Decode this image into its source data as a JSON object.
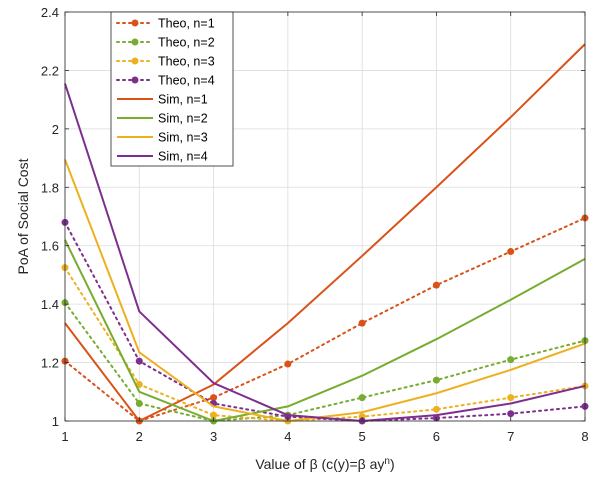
{
  "chart_data": {
    "type": "line",
    "xlabel": "Value of β (c(y)=β ay",
    "xlabel_sup": "n",
    "xlabel_end": ")",
    "ylabel": "PoA of Social Cost",
    "xlim": [
      1,
      8
    ],
    "ylim": [
      1,
      2.4
    ],
    "x_ticks": [
      "1",
      "2",
      "3",
      "4",
      "5",
      "6",
      "7",
      "8"
    ],
    "y_ticks": [
      "1",
      "1.2",
      "1.4",
      "1.6",
      "1.8",
      "2",
      "2.2",
      "2.4"
    ],
    "grid": true,
    "legend_position": "top-left",
    "x": [
      1,
      2,
      3,
      4,
      5,
      6,
      7,
      8
    ],
    "series": [
      {
        "name": "Theo, n=1",
        "style": "dotted-marker",
        "color": "#D95319",
        "values": [
          1.205,
          1.0,
          1.08,
          1.195,
          1.335,
          1.465,
          1.58,
          1.695
        ]
      },
      {
        "name": "Theo, n=2",
        "style": "dotted-marker",
        "color": "#77AC30",
        "values": [
          1.405,
          1.06,
          1.0,
          1.02,
          1.08,
          1.14,
          1.21,
          1.275
        ]
      },
      {
        "name": "Theo, n=3",
        "style": "dotted-marker",
        "color": "#EDB120",
        "values": [
          1.525,
          1.125,
          1.02,
          1.0,
          1.015,
          1.04,
          1.08,
          1.12
        ]
      },
      {
        "name": "Theo, n=4",
        "style": "dotted-marker",
        "color": "#7E2F8E",
        "values": [
          1.68,
          1.205,
          1.06,
          1.015,
          1.0,
          1.01,
          1.025,
          1.05
        ]
      },
      {
        "name": "Sim, n=1",
        "style": "solid",
        "color": "#D95319",
        "values": [
          1.335,
          1.0,
          1.125,
          1.335,
          1.565,
          1.8,
          2.04,
          2.29
        ]
      },
      {
        "name": "Sim, n=2",
        "style": "solid",
        "color": "#77AC30",
        "values": [
          1.62,
          1.1,
          1.0,
          1.05,
          1.155,
          1.28,
          1.415,
          1.555
        ]
      },
      {
        "name": "Sim, n=3",
        "style": "solid",
        "color": "#EDB120",
        "values": [
          1.895,
          1.235,
          1.05,
          1.0,
          1.03,
          1.095,
          1.175,
          1.265
        ]
      },
      {
        "name": "Sim, n=4",
        "style": "solid",
        "color": "#7E2F8E",
        "values": [
          2.155,
          1.375,
          1.13,
          1.02,
          1.0,
          1.02,
          1.06,
          1.12
        ]
      }
    ]
  }
}
